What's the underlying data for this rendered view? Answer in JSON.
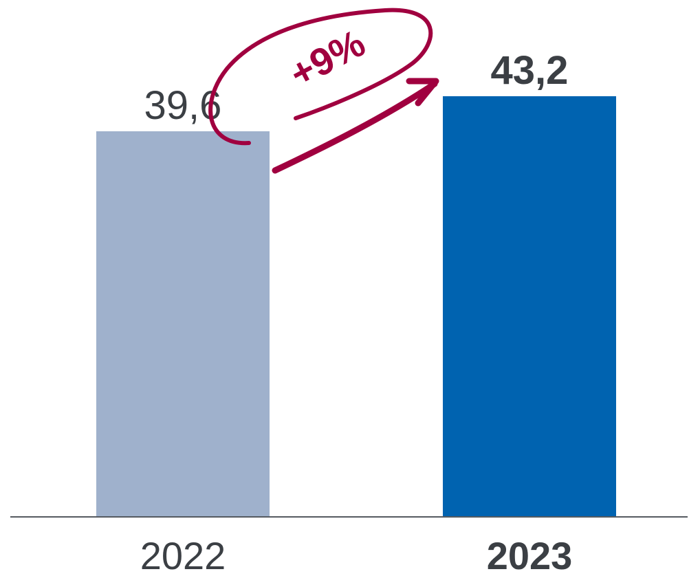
{
  "chart_data": {
    "type": "bar",
    "title": "",
    "xlabel": "",
    "ylabel": "",
    "categories": [
      "2022",
      "2023"
    ],
    "values": [
      39.6,
      43.2
    ],
    "value_labels": [
      "39,6",
      "43,2"
    ],
    "ylim": [
      0,
      43.2
    ],
    "grid": false,
    "bar_colors": [
      "#9fb1cc",
      "#0063b0"
    ],
    "emphasized_category": "2023",
    "annotation": {
      "text": "+9%",
      "color": "#a0003f",
      "from": "2022",
      "to": "2023"
    }
  }
}
